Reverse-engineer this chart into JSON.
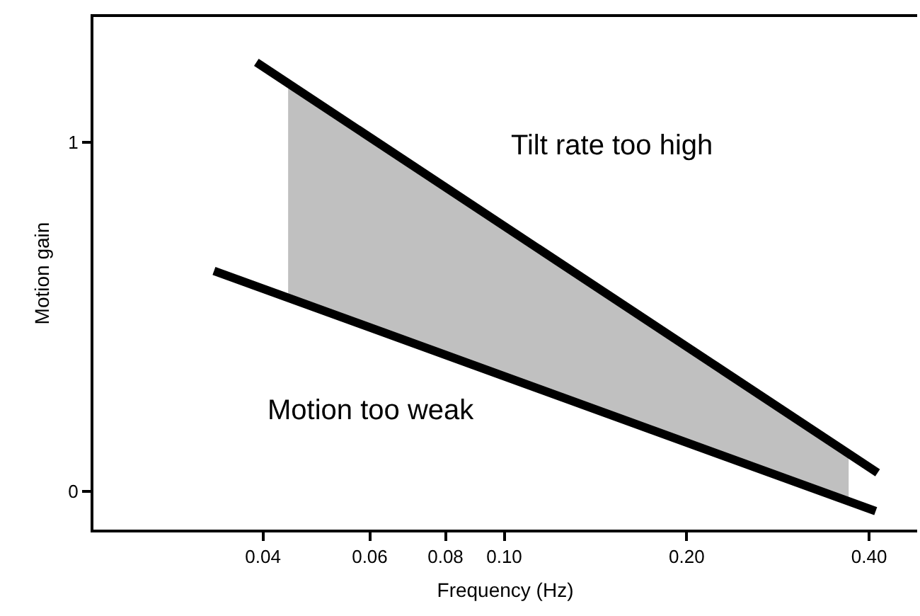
{
  "chart_data": {
    "type": "line",
    "xlabel": "Frequency (Hz)",
    "ylabel": "Motion gain",
    "log": "x",
    "marker": "none",
    "xlim": [
      0.021,
      0.48
    ],
    "ylim": [
      -0.11,
      1.36
    ],
    "xticks": [
      0.04,
      0.06,
      0.08,
      {
        "value": 0.1,
        "label": "0.10"
      },
      {
        "value": 0.2,
        "label": "0.20"
      },
      {
        "value": 0.4,
        "label": "0.40"
      }
    ],
    "yticks": [
      0,
      1
    ],
    "series": [
      {
        "type": "area",
        "color": "#c0c0c0",
        "x": [
          0.044,
          0.37
        ],
        "values": [
          null,
          null
        ],
        "upper": [
          1.17,
          0.11
        ],
        "lower": [
          0.555,
          -0.03
        ]
      },
      {
        "color": "#000000",
        "x": [
          0.039,
          0.413
        ],
        "values": [
          1.23,
          0.053
        ]
      },
      {
        "color": "#000000",
        "x": [
          0.0332,
          0.41
        ],
        "values": [
          0.632,
          -0.057
        ]
      }
    ],
    "annotations": [
      "Tilt rate too high",
      "Motion too weak"
    ]
  }
}
